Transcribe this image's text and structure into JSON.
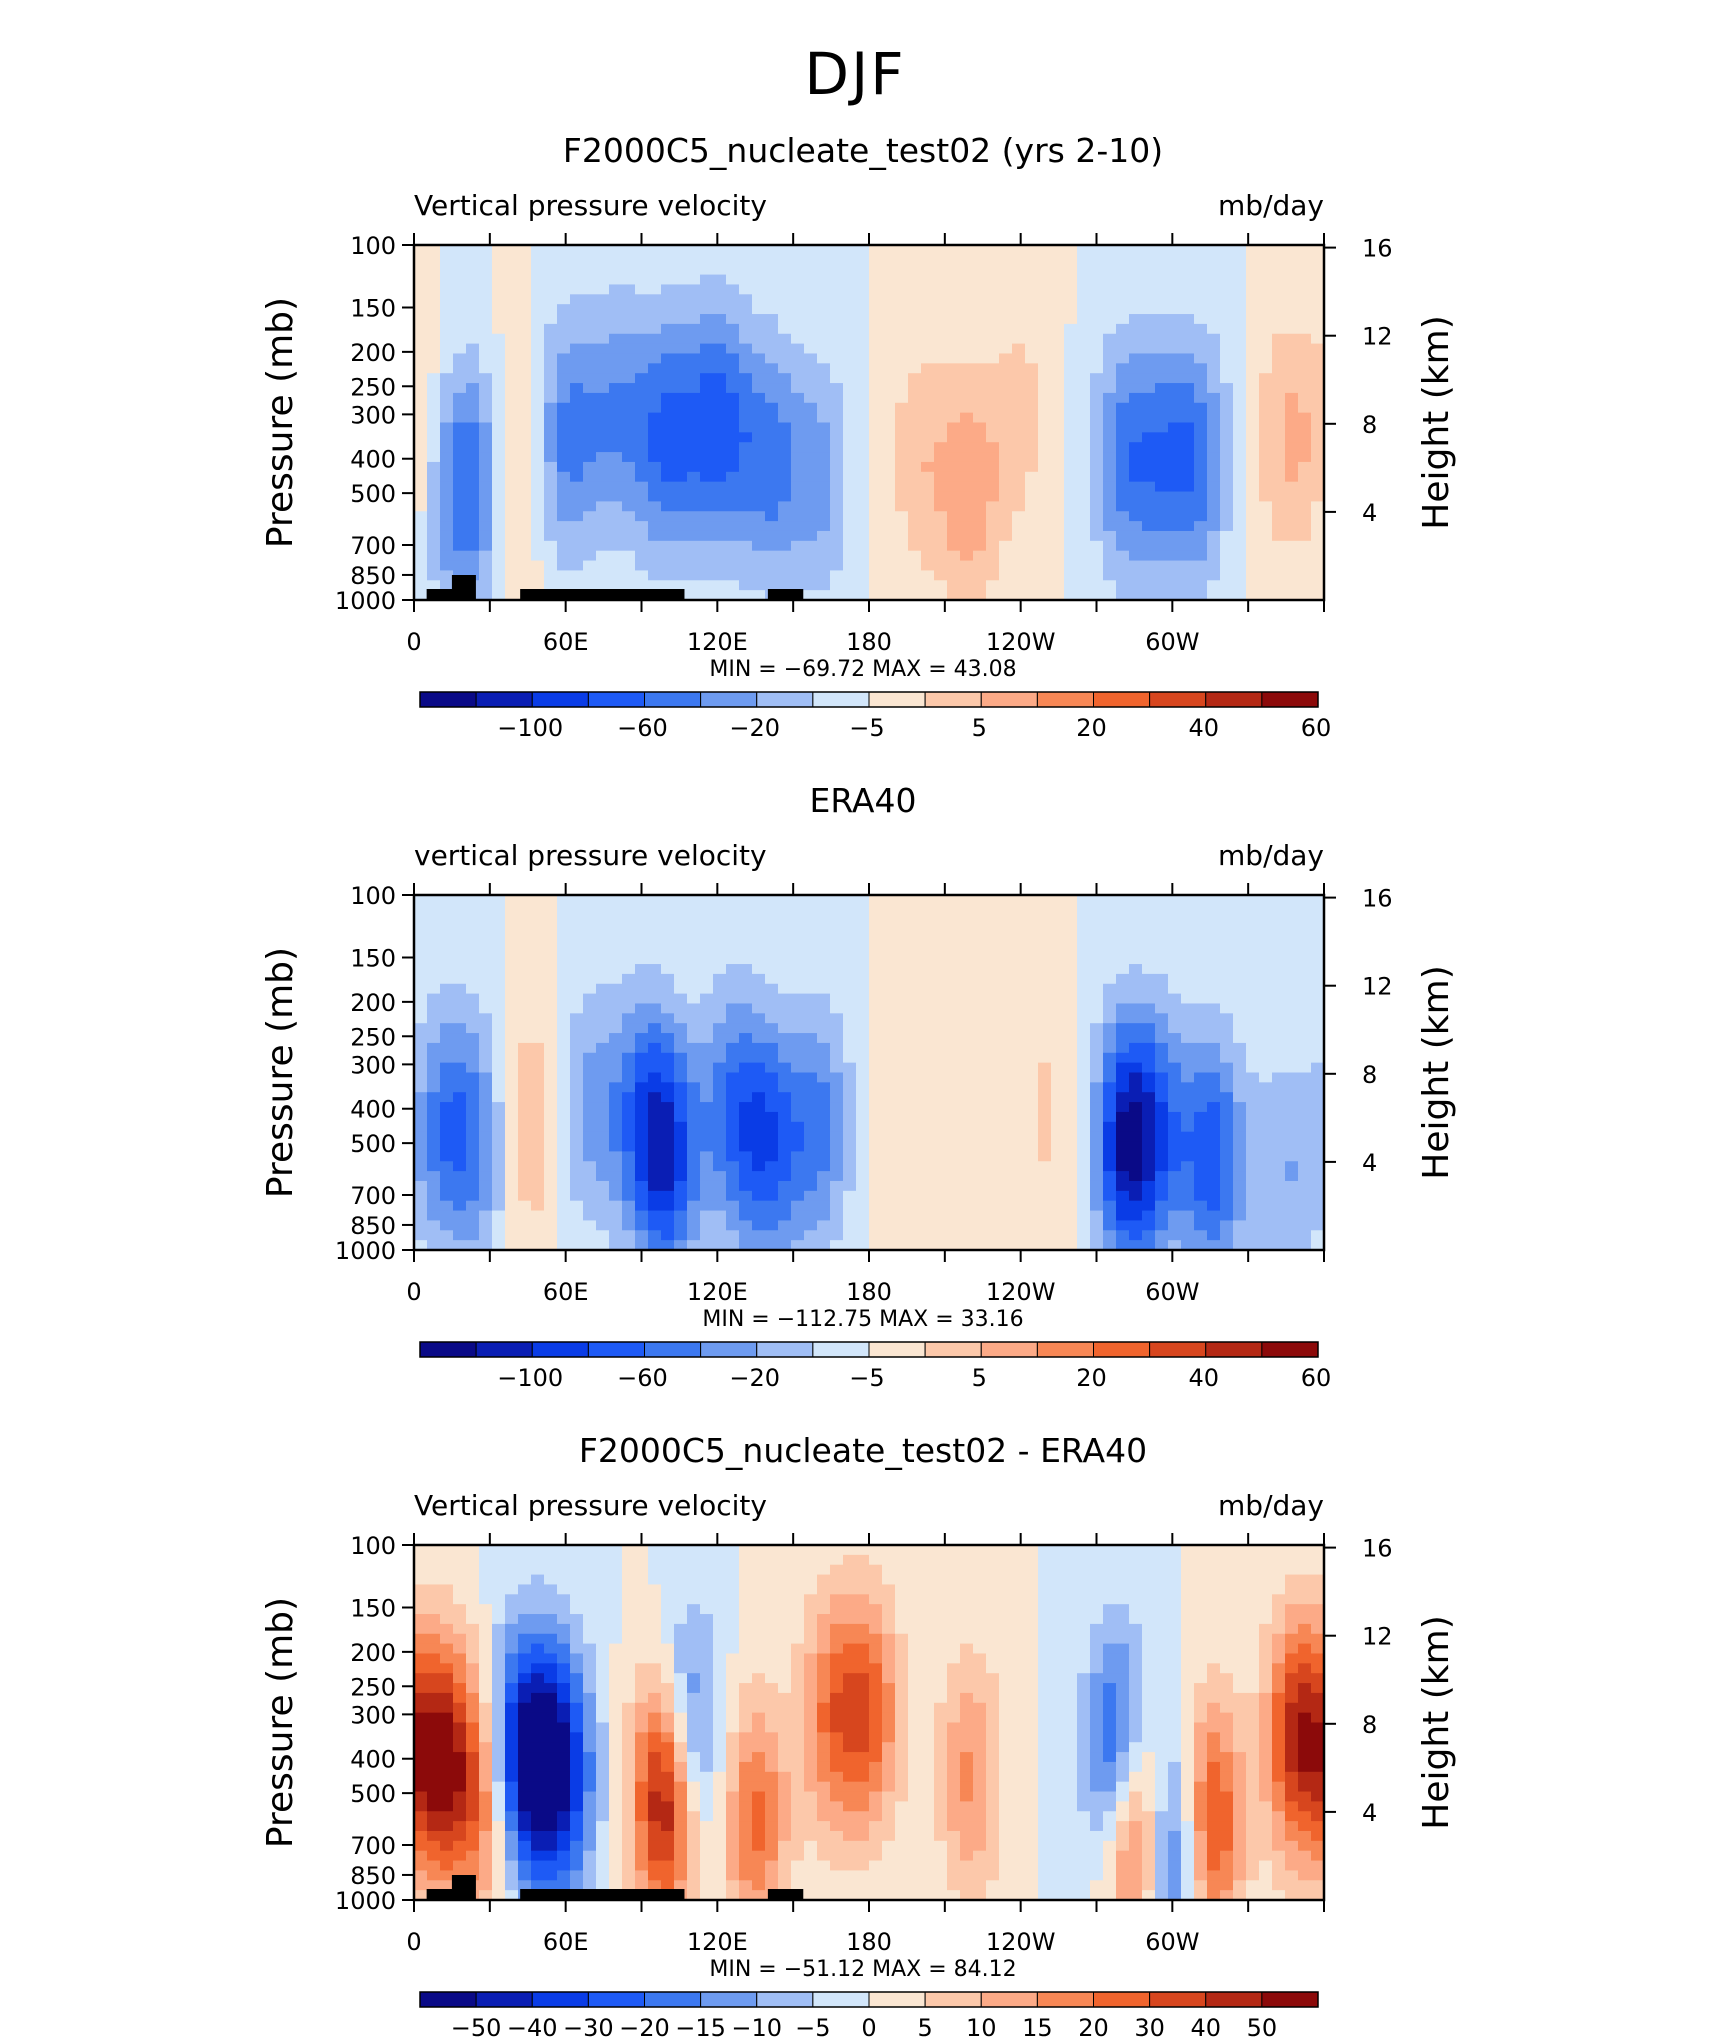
{
  "figure_title": "DJF",
  "chart_data": [
    {
      "type": "heatmap",
      "title": "F2000C5_nucleate_test02 (yrs 2-10)",
      "left_label": "Vertical pressure velocity",
      "right_label": "mb/day",
      "ylabel": "Pressure (mb)",
      "y2label": "Height (km)",
      "x_ticklabels": [
        "0",
        "60E",
        "120E",
        "180",
        "120W",
        "60W"
      ],
      "y_ticklabels": [
        "100",
        "150",
        "200",
        "250",
        "300",
        "400",
        "500",
        "700",
        "850",
        "1000"
      ],
      "y2_ticklabels": [
        "16",
        "12",
        "8",
        "4"
      ],
      "stats": "MIN = −69.72   MAX =   43.08",
      "min": -69.72,
      "max": 43.08,
      "colorbar_labels": [
        "−100",
        "−60",
        "−20",
        "−5",
        "5",
        "20",
        "40",
        "60"
      ],
      "ylim": [
        1000,
        100
      ],
      "xlim": [
        0,
        360
      ],
      "blobs": [
        {
          "x": 14,
          "p": 500,
          "v": -35
        },
        {
          "x": 25,
          "p": 450,
          "v": -45
        },
        {
          "x": 40,
          "p": 400,
          "v": 30
        },
        {
          "x": 60,
          "p": 350,
          "v": -50
        },
        {
          "x": 80,
          "p": 300,
          "v": -40
        },
        {
          "x": 100,
          "p": 350,
          "v": -60
        },
        {
          "x": 120,
          "p": 320,
          "v": -65
        },
        {
          "x": 140,
          "p": 400,
          "v": -50
        },
        {
          "x": 160,
          "p": 450,
          "v": -35
        },
        {
          "x": 200,
          "p": 400,
          "v": 25
        },
        {
          "x": 220,
          "p": 500,
          "v": 40
        },
        {
          "x": 240,
          "p": 300,
          "v": 20
        },
        {
          "x": 280,
          "p": 400,
          "v": -45
        },
        {
          "x": 295,
          "p": 400,
          "v": -40
        },
        {
          "x": 310,
          "p": 400,
          "v": -50
        },
        {
          "x": 345,
          "p": 350,
          "v": 30
        },
        {
          "x": 2,
          "p": 350,
          "v": 20
        }
      ]
    },
    {
      "type": "heatmap",
      "title": "ERA40",
      "left_label": "vertical pressure velocity",
      "right_label": "mb/day",
      "ylabel": "Pressure (mb)",
      "y2label": "Height (km)",
      "x_ticklabels": [
        "0",
        "60E",
        "120E",
        "180",
        "120W",
        "60W"
      ],
      "y_ticklabels": [
        "100",
        "150",
        "200",
        "250",
        "300",
        "400",
        "500",
        "700",
        "850",
        "1000"
      ],
      "y2_ticklabels": [
        "16",
        "12",
        "8",
        "4"
      ],
      "stats": "MIN = −112.75   MAX =   33.16",
      "min": -112.75,
      "max": 33.16,
      "colorbar_labels": [
        "−100",
        "−60",
        "−20",
        "−5",
        "5",
        "20",
        "40",
        "60"
      ],
      "ylim": [
        1000,
        100
      ],
      "xlim": [
        0,
        360
      ],
      "blobs": [
        {
          "x": 12,
          "p": 450,
          "v": -50
        },
        {
          "x": 26,
          "p": 500,
          "v": -40
        },
        {
          "x": 45,
          "p": 450,
          "v": 30
        },
        {
          "x": 70,
          "p": 400,
          "v": -35
        },
        {
          "x": 90,
          "p": 400,
          "v": -45
        },
        {
          "x": 100,
          "p": 550,
          "v": -80
        },
        {
          "x": 125,
          "p": 400,
          "v": -50
        },
        {
          "x": 140,
          "p": 500,
          "v": -65
        },
        {
          "x": 160,
          "p": 450,
          "v": -50
        },
        {
          "x": 200,
          "p": 450,
          "v": 15
        },
        {
          "x": 250,
          "p": 400,
          "v": 18
        },
        {
          "x": 282,
          "p": 500,
          "v": -100
        },
        {
          "x": 295,
          "p": 450,
          "v": -45
        },
        {
          "x": 316,
          "p": 550,
          "v": -70
        },
        {
          "x": 345,
          "p": 600,
          "v": -30
        }
      ]
    },
    {
      "type": "heatmap",
      "title": "F2000C5_nucleate_test02 - ERA40",
      "left_label": "Vertical pressure velocity",
      "right_label": "mb/day",
      "ylabel": "Pressure (mb)",
      "y2label": "Height (km)",
      "x_ticklabels": [
        "0",
        "60E",
        "120E",
        "180",
        "120W",
        "60W"
      ],
      "y_ticklabels": [
        "100",
        "150",
        "200",
        "250",
        "300",
        "400",
        "500",
        "700",
        "850",
        "1000"
      ],
      "y2_ticklabels": [
        "16",
        "12",
        "8",
        "4"
      ],
      "stats": "MIN = −51.12   MAX =   84.12",
      "min": -51.12,
      "max": 84.12,
      "colorbar_labels": [
        "−50",
        "−40",
        "−30",
        "−20",
        "−15",
        "−10",
        "−5",
        "0",
        "5",
        "10",
        "15",
        "20",
        "30",
        "40",
        "50"
      ],
      "ylim": [
        1000,
        100
      ],
      "xlim": [
        0,
        360
      ],
      "blobs": [
        {
          "x": 10,
          "p": 400,
          "v": 50
        },
        {
          "x": 28,
          "p": 500,
          "v": 35
        },
        {
          "x": 38,
          "p": 400,
          "v": -35
        },
        {
          "x": 50,
          "p": 400,
          "v": -40
        },
        {
          "x": 60,
          "p": 450,
          "v": -30
        },
        {
          "x": 100,
          "p": 500,
          "v": 60
        },
        {
          "x": 108,
          "p": 350,
          "v": -35
        },
        {
          "x": 135,
          "p": 600,
          "v": 30
        },
        {
          "x": 165,
          "p": 300,
          "v": 25
        },
        {
          "x": 180,
          "p": 300,
          "v": 30
        },
        {
          "x": 220,
          "p": 450,
          "v": 22
        },
        {
          "x": 279,
          "p": 400,
          "v": -45
        },
        {
          "x": 285,
          "p": 600,
          "v": 50
        },
        {
          "x": 300,
          "p": 700,
          "v": -35
        },
        {
          "x": 315,
          "p": 600,
          "v": 40
        },
        {
          "x": 350,
          "p": 350,
          "v": 45
        }
      ]
    }
  ],
  "colors": {
    "colorbar_a": [
      "#0a0a87",
      "#0a1eb4",
      "#0a3ce6",
      "#1e5af5",
      "#3c78f0",
      "#6e9bf0",
      "#a0bef5",
      "#d2e6fa",
      "#fae6d2",
      "#fcc8aa",
      "#fcaa87",
      "#f78755",
      "#f0642d",
      "#d7461e",
      "#b42814",
      "#8c0a0a"
    ],
    "colorbar_b": [
      "#0a0a87",
      "#0a1eb4",
      "#0a3ce6",
      "#1e5af5",
      "#3c78f0",
      "#6e9bf0",
      "#a0bef5",
      "#d2e6fa",
      "#fae6d2",
      "#fcc8aa",
      "#fcaa87",
      "#f78755",
      "#f0642d",
      "#d7461e",
      "#b42814",
      "#8c0a0a"
    ],
    "land": "#000000"
  }
}
